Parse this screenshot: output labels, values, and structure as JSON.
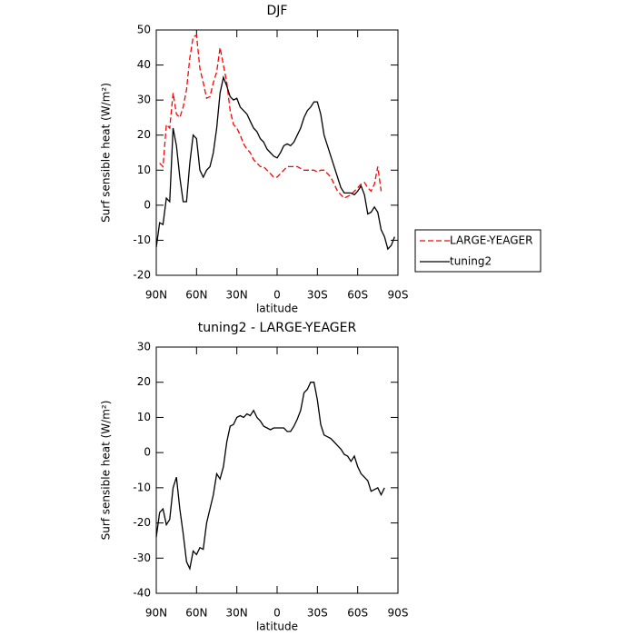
{
  "chart_data": [
    {
      "type": "line",
      "title": "DJF",
      "xlabel": "latitude",
      "ylabel": "Surf sensible heat (W/m²)",
      "x": [
        90,
        87.5,
        85,
        82.5,
        80,
        77.5,
        75,
        72.5,
        70,
        67.5,
        65,
        62.5,
        60,
        57.5,
        55,
        52.5,
        50,
        47.5,
        45,
        42.5,
        40,
        37.5,
        35,
        32.5,
        30,
        27.5,
        25,
        22.5,
        20,
        17.5,
        15,
        12.5,
        10,
        7.5,
        5,
        2.5,
        0,
        -2.5,
        -5,
        -7.5,
        -10,
        -12.5,
        -15,
        -17.5,
        -20,
        -22.5,
        -25,
        -27.5,
        -30,
        -32.5,
        -35,
        -37.5,
        -40,
        -42.5,
        -45,
        -47.5,
        -50,
        -52.5,
        -55,
        -57.5,
        -60,
        -62.5,
        -65,
        -67.5,
        -70,
        -72.5,
        -75,
        -77.5,
        -80,
        -82.5,
        -85,
        -87.5
      ],
      "series": [
        {
          "name": "LARGE-YEAGER",
          "color": "#ff0000",
          "dash": true,
          "values": [
            null,
            12,
            11,
            23,
            22,
            32,
            26,
            25,
            28,
            33,
            42,
            48,
            48.5,
            39,
            35,
            30.5,
            31,
            35,
            38,
            45,
            40,
            35,
            27,
            23,
            22,
            20,
            17.5,
            16,
            15,
            13,
            12,
            11,
            11,
            10,
            9,
            8,
            8,
            9,
            10,
            11,
            11,
            11,
            11,
            10.5,
            10,
            10,
            10,
            10,
            9.5,
            10,
            10,
            9,
            8,
            6,
            4,
            3,
            2,
            2.5,
            3,
            4,
            5,
            6,
            6.5,
            5,
            4,
            6,
            11,
            4,
            null,
            null,
            null,
            null
          ]
        },
        {
          "name": "tuning2",
          "color": "#000000",
          "dash": false,
          "values": [
            -12,
            -5,
            -5.5,
            2,
            1,
            22,
            17,
            8,
            1,
            1,
            12,
            20,
            19,
            10,
            8,
            10,
            11,
            15,
            22,
            32,
            36.5,
            34,
            31,
            30,
            30.5,
            28,
            27,
            26,
            24,
            22,
            21,
            19,
            18,
            16,
            15,
            14,
            13.5,
            15,
            17,
            17.5,
            17,
            18,
            20,
            22,
            25,
            27,
            28,
            29.5,
            29.5,
            26,
            20,
            17,
            14,
            11,
            8,
            5,
            3.5,
            3.5,
            3.5,
            3,
            4,
            5.5,
            3,
            -2.5,
            -2,
            -0.5,
            -2,
            -7,
            -9,
            -12.5,
            -11.5,
            -9
          ]
        }
      ],
      "xlim": [
        90,
        -90
      ],
      "xticks": [
        {
          "value": 90,
          "label": "90N"
        },
        {
          "value": 60,
          "label": "60N"
        },
        {
          "value": 30,
          "label": "30N"
        },
        0,
        {
          "value": -30,
          "label": "30S"
        },
        {
          "value": -60,
          "label": "60S"
        },
        {
          "value": -90,
          "label": "90S"
        }
      ],
      "ylim": [
        -20,
        50
      ],
      "yticks": [
        -20,
        -10,
        0,
        10,
        20,
        30,
        40,
        50
      ],
      "legend": "right"
    },
    {
      "type": "line",
      "title": "tuning2 - LARGE-YEAGER",
      "xlabel": "latitude",
      "ylabel": "Surf sensible heat (W/m²)",
      "x": [
        90,
        87.5,
        85,
        82.5,
        80,
        77.5,
        75,
        72.5,
        70,
        67.5,
        65,
        62.5,
        60,
        57.5,
        55,
        52.5,
        50,
        47.5,
        45,
        42.5,
        40,
        37.5,
        35,
        32.5,
        30,
        27.5,
        25,
        22.5,
        20,
        17.5,
        15,
        12.5,
        10,
        7.5,
        5,
        2.5,
        0,
        -2.5,
        -5,
        -7.5,
        -10,
        -12.5,
        -15,
        -17.5,
        -20,
        -22.5,
        -25,
        -27.5,
        -30,
        -32.5,
        -35,
        -37.5,
        -40,
        -42.5,
        -45,
        -47.5,
        -50,
        -52.5,
        -55,
        -57.5,
        -60,
        -62.5,
        -65,
        -67.5,
        -70,
        -72.5,
        -75,
        -77.5,
        -80,
        -82.5,
        -85,
        -87.5
      ],
      "series": [
        {
          "color": "#000000",
          "dash": false,
          "values": [
            -24,
            -17,
            -16,
            -20.5,
            -19,
            -10,
            -7,
            -16,
            -23,
            -31,
            -33,
            -28,
            -29,
            -27,
            -27.5,
            -20,
            -16,
            -12,
            -6,
            -7.5,
            -4,
            3,
            7.5,
            8,
            10,
            10.5,
            10,
            11,
            10.5,
            12,
            10,
            9,
            7.5,
            7,
            6.5,
            7,
            7,
            7,
            7,
            6,
            6,
            7.5,
            9.5,
            12,
            17,
            18,
            20,
            20,
            15,
            8,
            5,
            4.5,
            4,
            3,
            2,
            1,
            -0.5,
            -1,
            -2.5,
            -1,
            -4,
            -6,
            -7,
            -8,
            -11,
            -10.5,
            -10,
            -12,
            -10,
            null,
            null,
            null
          ]
        }
      ],
      "xlim": [
        90,
        -90
      ],
      "xticks": [
        {
          "value": 90,
          "label": "90N"
        },
        {
          "value": 60,
          "label": "60N"
        },
        {
          "value": 30,
          "label": "30N"
        },
        0,
        {
          "value": -30,
          "label": "30S"
        },
        {
          "value": -60,
          "label": "60S"
        },
        {
          "value": -90,
          "label": "90S"
        }
      ],
      "ylim": [
        -40,
        30
      ],
      "yticks": [
        -40,
        -30,
        -20,
        -10,
        0,
        10,
        20,
        30
      ]
    }
  ]
}
